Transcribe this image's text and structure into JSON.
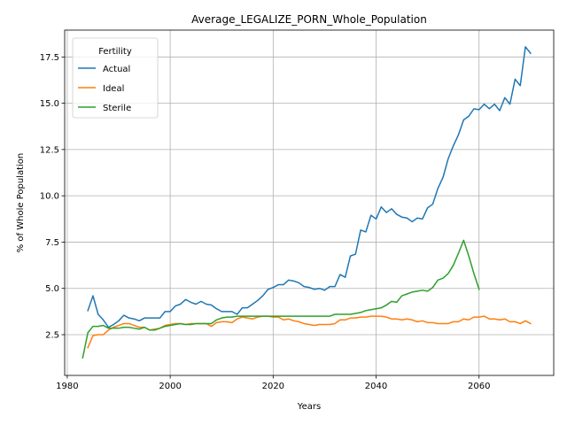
{
  "chart_data": {
    "type": "line",
    "title": "Average_LEGALIZE_PORN_Whole_Population",
    "xlabel": "Years",
    "ylabel": "% of Whole Population",
    "xlim": [
      1979.5,
      2074.5
    ],
    "ylim": [
      0.3,
      18.95
    ],
    "x_ticks": [
      1980,
      2000,
      2020,
      2040,
      2060
    ],
    "y_ticks": [
      2.5,
      5.0,
      7.5,
      10.0,
      12.5,
      15.0,
      17.5
    ],
    "x_tick_labels": [
      "1980",
      "2000",
      "2020",
      "2040",
      "2060"
    ],
    "y_tick_labels": [
      "2.5",
      "5.0",
      "7.5",
      "10.0",
      "12.5",
      "15.0",
      "17.5"
    ],
    "grid": true,
    "legend": {
      "title": "Fertility",
      "position": "top-left"
    },
    "series": [
      {
        "name": "Actual",
        "color": "#1f77b4",
        "points": [
          [
            1984,
            3.8
          ],
          [
            1985,
            4.6
          ],
          [
            1986,
            3.6
          ],
          [
            1987,
            3.3
          ],
          [
            1988,
            2.9
          ],
          [
            1989,
            3.05
          ],
          [
            1990,
            3.25
          ],
          [
            1991,
            3.55
          ],
          [
            1992,
            3.4
          ],
          [
            1993,
            3.35
          ],
          [
            1994,
            3.25
          ],
          [
            1995,
            3.4
          ],
          [
            1996,
            3.4
          ],
          [
            1997,
            3.4
          ],
          [
            1998,
            3.4
          ],
          [
            1999,
            3.75
          ],
          [
            2000,
            3.75
          ],
          [
            2001,
            4.05
          ],
          [
            2002,
            4.15
          ],
          [
            2003,
            4.4
          ],
          [
            2004,
            4.25
          ],
          [
            2005,
            4.15
          ],
          [
            2006,
            4.3
          ],
          [
            2007,
            4.15
          ],
          [
            2008,
            4.1
          ],
          [
            2009,
            3.9
          ],
          [
            2010,
            3.75
          ],
          [
            2011,
            3.75
          ],
          [
            2012,
            3.75
          ],
          [
            2013,
            3.6
          ],
          [
            2014,
            3.95
          ],
          [
            2015,
            3.95
          ],
          [
            2016,
            4.15
          ],
          [
            2017,
            4.35
          ],
          [
            2018,
            4.6
          ],
          [
            2019,
            4.95
          ],
          [
            2020,
            5.05
          ],
          [
            2021,
            5.2
          ],
          [
            2022,
            5.2
          ],
          [
            2023,
            5.45
          ],
          [
            2024,
            5.4
          ],
          [
            2025,
            5.3
          ],
          [
            2026,
            5.1
          ],
          [
            2027,
            5.05
          ],
          [
            2028,
            4.95
          ],
          [
            2029,
            5.0
          ],
          [
            2030,
            4.9
          ],
          [
            2031,
            5.1
          ],
          [
            2032,
            5.1
          ],
          [
            2033,
            5.75
          ],
          [
            2034,
            5.6
          ],
          [
            2035,
            6.75
          ],
          [
            2036,
            6.85
          ],
          [
            2037,
            8.15
          ],
          [
            2038,
            8.05
          ],
          [
            2039,
            8.95
          ],
          [
            2040,
            8.75
          ],
          [
            2041,
            9.4
          ],
          [
            2042,
            9.1
          ],
          [
            2043,
            9.3
          ],
          [
            2044,
            9.0
          ],
          [
            2045,
            8.85
          ],
          [
            2046,
            8.8
          ],
          [
            2047,
            8.6
          ],
          [
            2048,
            8.8
          ],
          [
            2049,
            8.75
          ],
          [
            2050,
            9.35
          ],
          [
            2051,
            9.55
          ],
          [
            2052,
            10.4
          ],
          [
            2053,
            11.0
          ],
          [
            2054,
            12.0
          ],
          [
            2055,
            12.7
          ],
          [
            2056,
            13.3
          ],
          [
            2057,
            14.1
          ],
          [
            2058,
            14.3
          ],
          [
            2059,
            14.7
          ],
          [
            2060,
            14.65
          ],
          [
            2061,
            14.95
          ],
          [
            2062,
            14.7
          ],
          [
            2063,
            14.95
          ],
          [
            2064,
            14.6
          ],
          [
            2065,
            15.3
          ],
          [
            2066,
            14.95
          ],
          [
            2067,
            16.3
          ],
          [
            2068,
            15.95
          ],
          [
            2069,
            18.05
          ],
          [
            2070,
            17.7
          ]
        ]
      },
      {
        "name": "Ideal",
        "color": "#ff7f0e",
        "points": [
          [
            1984,
            1.8
          ],
          [
            1985,
            2.45
          ],
          [
            1986,
            2.5
          ],
          [
            1987,
            2.5
          ],
          [
            1988,
            2.75
          ],
          [
            1989,
            2.9
          ],
          [
            1990,
            3.0
          ],
          [
            1991,
            3.1
          ],
          [
            1992,
            3.1
          ],
          [
            1993,
            3.0
          ],
          [
            1994,
            2.9
          ],
          [
            1995,
            2.9
          ],
          [
            1996,
            2.75
          ],
          [
            1997,
            2.8
          ],
          [
            1998,
            2.85
          ],
          [
            1999,
            3.0
          ],
          [
            2000,
            3.05
          ],
          [
            2001,
            3.1
          ],
          [
            2002,
            3.1
          ],
          [
            2003,
            3.05
          ],
          [
            2004,
            3.1
          ],
          [
            2005,
            3.1
          ],
          [
            2006,
            3.1
          ],
          [
            2007,
            3.1
          ],
          [
            2008,
            2.95
          ],
          [
            2009,
            3.15
          ],
          [
            2010,
            3.2
          ],
          [
            2011,
            3.2
          ],
          [
            2012,
            3.15
          ],
          [
            2013,
            3.35
          ],
          [
            2014,
            3.45
          ],
          [
            2015,
            3.4
          ],
          [
            2016,
            3.35
          ],
          [
            2017,
            3.45
          ],
          [
            2018,
            3.5
          ],
          [
            2019,
            3.5
          ],
          [
            2020,
            3.45
          ],
          [
            2021,
            3.45
          ],
          [
            2022,
            3.3
          ],
          [
            2023,
            3.35
          ],
          [
            2024,
            3.25
          ],
          [
            2025,
            3.2
          ],
          [
            2026,
            3.1
          ],
          [
            2027,
            3.05
          ],
          [
            2028,
            3.0
          ],
          [
            2029,
            3.05
          ],
          [
            2030,
            3.05
          ],
          [
            2031,
            3.05
          ],
          [
            2032,
            3.1
          ],
          [
            2033,
            3.3
          ],
          [
            2034,
            3.3
          ],
          [
            2035,
            3.4
          ],
          [
            2036,
            3.4
          ],
          [
            2037,
            3.45
          ],
          [
            2038,
            3.45
          ],
          [
            2039,
            3.5
          ],
          [
            2040,
            3.5
          ],
          [
            2041,
            3.5
          ],
          [
            2042,
            3.45
          ],
          [
            2043,
            3.35
          ],
          [
            2044,
            3.35
          ],
          [
            2045,
            3.3
          ],
          [
            2046,
            3.35
          ],
          [
            2047,
            3.3
          ],
          [
            2048,
            3.2
          ],
          [
            2049,
            3.25
          ],
          [
            2050,
            3.15
          ],
          [
            2051,
            3.15
          ],
          [
            2052,
            3.1
          ],
          [
            2053,
            3.1
          ],
          [
            2054,
            3.1
          ],
          [
            2055,
            3.2
          ],
          [
            2056,
            3.2
          ],
          [
            2057,
            3.35
          ],
          [
            2058,
            3.3
          ],
          [
            2059,
            3.45
          ],
          [
            2060,
            3.45
          ],
          [
            2061,
            3.5
          ],
          [
            2062,
            3.35
          ],
          [
            2063,
            3.35
          ],
          [
            2064,
            3.3
          ],
          [
            2065,
            3.35
          ],
          [
            2066,
            3.2
          ],
          [
            2067,
            3.2
          ],
          [
            2068,
            3.1
          ],
          [
            2069,
            3.25
          ],
          [
            2070,
            3.1
          ]
        ]
      },
      {
        "name": "Sterile",
        "color": "#2ca02c",
        "points": [
          [
            1983,
            1.25
          ],
          [
            1984,
            2.6
          ],
          [
            1985,
            2.95
          ],
          [
            1986,
            2.95
          ],
          [
            1987,
            3.0
          ],
          [
            1988,
            2.85
          ],
          [
            1989,
            2.85
          ],
          [
            1990,
            2.85
          ],
          [
            1991,
            2.9
          ],
          [
            1992,
            2.9
          ],
          [
            1993,
            2.85
          ],
          [
            1994,
            2.8
          ],
          [
            1995,
            2.9
          ],
          [
            1996,
            2.75
          ],
          [
            1997,
            2.75
          ],
          [
            1998,
            2.85
          ],
          [
            1999,
            2.95
          ],
          [
            2000,
            3.0
          ],
          [
            2001,
            3.05
          ],
          [
            2002,
            3.1
          ],
          [
            2003,
            3.05
          ],
          [
            2004,
            3.05
          ],
          [
            2005,
            3.1
          ],
          [
            2006,
            3.1
          ],
          [
            2007,
            3.1
          ],
          [
            2008,
            3.1
          ],
          [
            2009,
            3.3
          ],
          [
            2010,
            3.4
          ],
          [
            2011,
            3.45
          ],
          [
            2012,
            3.45
          ],
          [
            2013,
            3.5
          ],
          [
            2014,
            3.5
          ],
          [
            2015,
            3.5
          ],
          [
            2016,
            3.5
          ],
          [
            2017,
            3.5
          ],
          [
            2018,
            3.5
          ],
          [
            2019,
            3.5
          ],
          [
            2020,
            3.5
          ],
          [
            2021,
            3.5
          ],
          [
            2022,
            3.5
          ],
          [
            2023,
            3.5
          ],
          [
            2024,
            3.5
          ],
          [
            2025,
            3.5
          ],
          [
            2026,
            3.5
          ],
          [
            2027,
            3.5
          ],
          [
            2028,
            3.5
          ],
          [
            2029,
            3.5
          ],
          [
            2030,
            3.5
          ],
          [
            2031,
            3.5
          ],
          [
            2032,
            3.6
          ],
          [
            2033,
            3.6
          ],
          [
            2034,
            3.6
          ],
          [
            2035,
            3.6
          ],
          [
            2036,
            3.65
          ],
          [
            2037,
            3.7
          ],
          [
            2038,
            3.8
          ],
          [
            2039,
            3.85
          ],
          [
            2040,
            3.9
          ],
          [
            2041,
            3.95
          ],
          [
            2042,
            4.1
          ],
          [
            2043,
            4.3
          ],
          [
            2044,
            4.25
          ],
          [
            2045,
            4.6
          ],
          [
            2046,
            4.7
          ],
          [
            2047,
            4.8
          ],
          [
            2048,
            4.85
          ],
          [
            2049,
            4.9
          ],
          [
            2050,
            4.85
          ],
          [
            2051,
            5.05
          ],
          [
            2052,
            5.45
          ],
          [
            2053,
            5.55
          ],
          [
            2054,
            5.8
          ],
          [
            2055,
            6.25
          ],
          [
            2056,
            6.9
          ],
          [
            2057,
            7.6
          ],
          [
            2058,
            6.75
          ],
          [
            2059,
            5.8
          ],
          [
            2060,
            4.95
          ]
        ]
      }
    ]
  }
}
